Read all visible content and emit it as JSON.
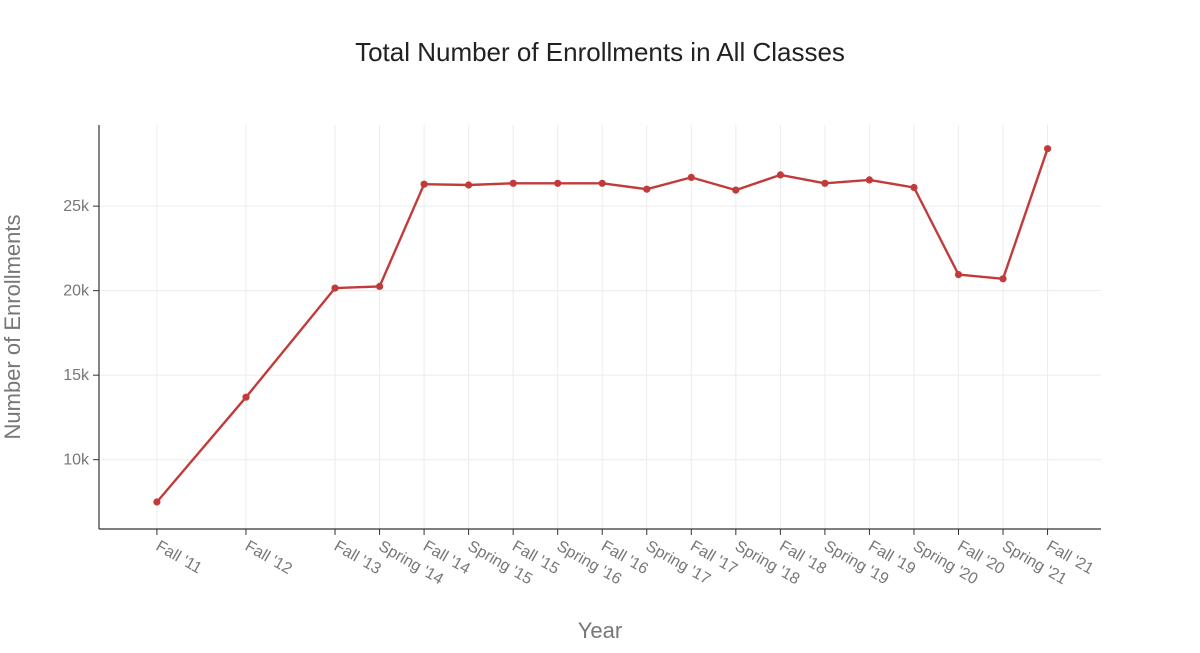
{
  "chart_data": {
    "type": "line",
    "title": "Total Number of Enrollments in All Classes",
    "xlabel": "Year",
    "ylabel": "Number of Enrollments",
    "x": [
      "Fall '11",
      "Fall '12",
      "Fall '13",
      "Spring '14",
      "Fall '14",
      "Spring '15",
      "Fall '15",
      "Spring '16",
      "Fall '16",
      "Spring '17",
      "Fall '17",
      "Spring '18",
      "Fall '18",
      "Spring '19",
      "Fall '19",
      "Spring '20",
      "Fall '20",
      "Spring '21",
      "Fall '21"
    ],
    "x_time": [
      2011.75,
      2012.75,
      2013.75,
      2014.25,
      2014.75,
      2015.25,
      2015.75,
      2016.25,
      2016.75,
      2017.25,
      2017.75,
      2018.25,
      2018.75,
      2019.25,
      2019.75,
      2020.25,
      2020.75,
      2021.25,
      2021.75
    ],
    "series": [
      {
        "name": "",
        "values": [
          7500,
          13700,
          20150,
          20250,
          26300,
          26250,
          26350,
          26350,
          26350,
          26000,
          26700,
          25950,
          26850,
          26350,
          26550,
          26100,
          20950,
          20700,
          28400
        ]
      }
    ],
    "xlim": [
      2011.1,
      2022.35
    ],
    "ylim": [
      5900,
      29800
    ],
    "yticks": [
      10000,
      15000,
      20000,
      25000
    ],
    "ytick_labels": [
      "10k",
      "15k",
      "20k",
      "25k"
    ],
    "grid": true,
    "line_color": "#c23b3b"
  }
}
